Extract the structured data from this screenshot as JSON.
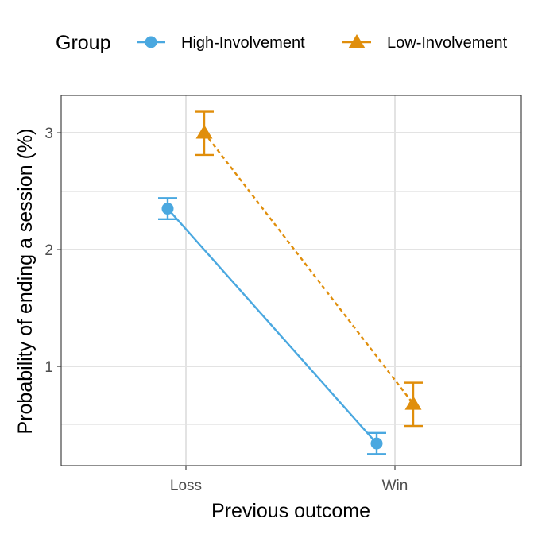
{
  "chart_data": {
    "type": "line",
    "xlabel": "Previous outcome",
    "ylabel": "Probability of ending a session (%)",
    "categories": [
      "Loss",
      "Win"
    ],
    "ylim": [
      0.15,
      3.32
    ],
    "yticks": [
      1,
      2,
      3
    ],
    "grid": true,
    "legend_title": "Group",
    "legend_position": "top",
    "series": [
      {
        "name": "High-Involvement",
        "color": "#4aa8e0",
        "marker": "circle",
        "line_style": "solid",
        "values": [
          2.35,
          0.34
        ],
        "ci_low": [
          2.26,
          0.25
        ],
        "ci_high": [
          2.44,
          0.43
        ]
      },
      {
        "name": "Low-Involvement",
        "color": "#e08e0b",
        "marker": "triangle",
        "line_style": "dashed",
        "values": [
          3.0,
          0.68
        ],
        "ci_low": [
          2.81,
          0.49
        ],
        "ci_high": [
          3.18,
          0.86
        ]
      }
    ]
  }
}
